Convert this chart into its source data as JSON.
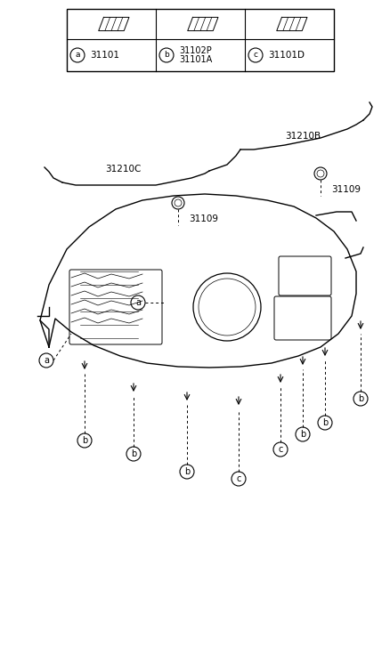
{
  "title": "",
  "bg_color": "#ffffff",
  "line_color": "#000000",
  "label_color": "#000000",
  "font_size_labels": 7.5,
  "font_size_parts": 7.5,
  "parts": {
    "31101": "a",
    "31102P\n31101A": "b",
    "31101D": "c"
  },
  "part_numbers_lower": [
    "31109",
    "31109",
    "31210C",
    "31210B"
  ]
}
